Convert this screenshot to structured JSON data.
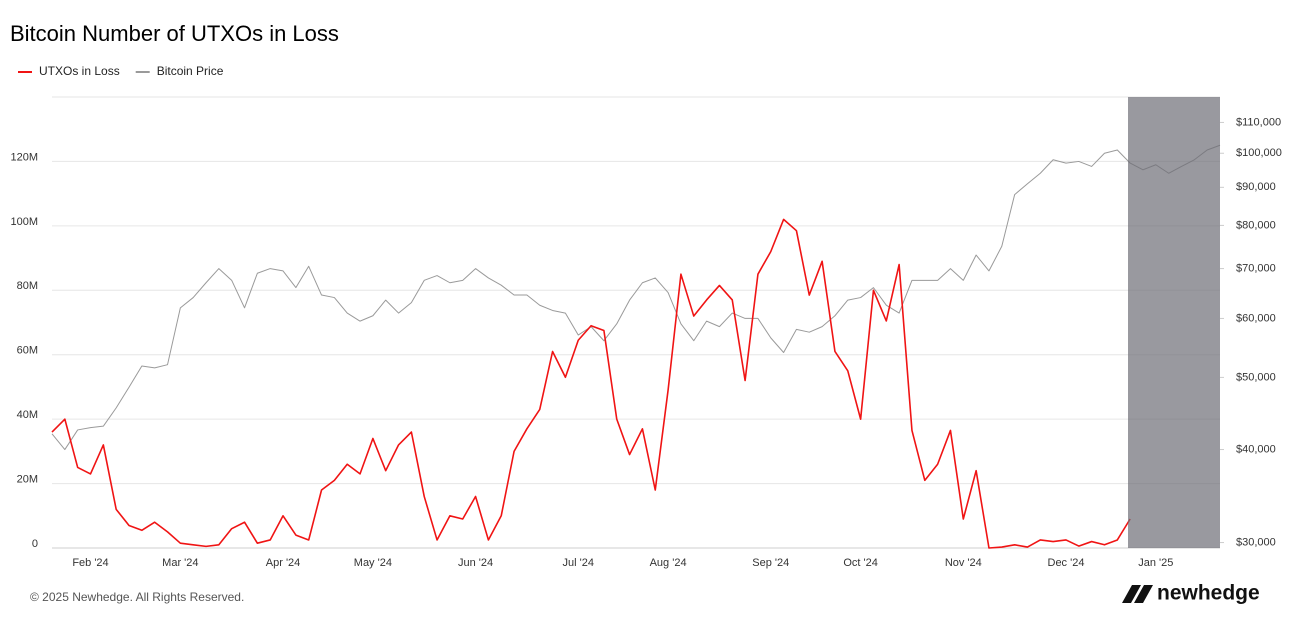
{
  "chart_data": {
    "type": "line",
    "title": "Bitcoin Number of UTXOs in Loss",
    "categories": [
      null,
      null,
      null,
      "Feb '24",
      null,
      null,
      null,
      null,
      null,
      null,
      "Mar '24",
      null,
      null,
      null,
      null,
      null,
      null,
      null,
      "Apr '24",
      null,
      null,
      null,
      null,
      null,
      null,
      "May '24",
      null,
      null,
      null,
      null,
      null,
      null,
      null,
      "Jun '24",
      null,
      null,
      null,
      null,
      null,
      null,
      null,
      "Jul '24",
      null,
      null,
      null,
      null,
      null,
      null,
      "Aug '24",
      null,
      null,
      null,
      null,
      null,
      null,
      null,
      "Sep '24",
      null,
      null,
      null,
      null,
      null,
      null,
      "Oct '24",
      null,
      null,
      null,
      null,
      null,
      null,
      null,
      "Nov '24",
      null,
      null,
      null,
      null,
      null,
      null,
      null,
      "Dec '24",
      null,
      null,
      null,
      null,
      null,
      null,
      "Jan '25",
      null,
      null,
      null,
      null,
      null
    ],
    "series": [
      {
        "name": "UTXOs in Loss",
        "color": "#f01414",
        "values": [
          36,
          40,
          25,
          23,
          32,
          12,
          7,
          5.5,
          8,
          5,
          1.5,
          1,
          0.5,
          1,
          6,
          8,
          1.5,
          2.5,
          10,
          4,
          2.5,
          18,
          21,
          26,
          23,
          34,
          24,
          32,
          36,
          16,
          2.5,
          10,
          9,
          16,
          2.5,
          10,
          30,
          37,
          43,
          61,
          53,
          64.5,
          69,
          67.5,
          40,
          29,
          37,
          18,
          49,
          85,
          72,
          77,
          81.5,
          77,
          52,
          85,
          92,
          102,
          98.5,
          78.5,
          89,
          61,
          55,
          40,
          80,
          70.5,
          88,
          36.5,
          21,
          26,
          36.5,
          9,
          24,
          0,
          0.3,
          1,
          0.3,
          2.5,
          2,
          2.5,
          0.6,
          2,
          1,
          2.5,
          9,
          null,
          null,
          null,
          null,
          null,
          null,
          null
        ]
      },
      {
        "name": "Bitcoin Price",
        "color": "#9a9a9a",
        "axis": "y2",
        "values": [
          42000,
          40000,
          42500,
          42800,
          43000,
          45500,
          48500,
          51800,
          51500,
          52000,
          62000,
          64000,
          67000,
          70000,
          67500,
          62000,
          69000,
          70000,
          69500,
          66000,
          70500,
          64500,
          64000,
          61000,
          59500,
          60500,
          63500,
          61000,
          63000,
          67500,
          68500,
          67000,
          67500,
          70000,
          68000,
          66500,
          64500,
          64500,
          62500,
          61500,
          61000,
          57000,
          58500,
          56000,
          59000,
          63500,
          67000,
          68000,
          65000,
          59000,
          56000,
          59500,
          58500,
          61000,
          60000,
          60000,
          56500,
          54000,
          58000,
          57500,
          58500,
          60500,
          63500,
          64000,
          66000,
          62500,
          61000,
          67500,
          67500,
          67500,
          70000,
          67500,
          73000,
          69500,
          75000,
          88000,
          91000,
          94000,
          98000,
          97000,
          97500,
          96000,
          100000,
          101000,
          97000,
          95000,
          96500,
          94000,
          96000,
          98000,
          101000,
          102500
        ]
      }
    ],
    "ylim": [
      0,
      140
    ],
    "yticks": [
      {
        "value": 0,
        "label": "0"
      },
      {
        "value": 20,
        "label": "20M"
      },
      {
        "value": 40,
        "label": "40M"
      },
      {
        "value": 60,
        "label": "60M"
      },
      {
        "value": 80,
        "label": "80M"
      },
      {
        "value": 100,
        "label": "100M"
      },
      {
        "value": 120,
        "label": "120M"
      }
    ],
    "y2lim": [
      29500,
      119000
    ],
    "y2scale": "log",
    "y2ticks": [
      {
        "value": 30000,
        "label": "$30,000"
      },
      {
        "value": 40000,
        "label": "$40,000"
      },
      {
        "value": 50000,
        "label": "$50,000"
      },
      {
        "value": 60000,
        "label": "$60,000"
      },
      {
        "value": 70000,
        "label": "$70,000"
      },
      {
        "value": 80000,
        "label": "$80,000"
      },
      {
        "value": 90000,
        "label": "$90,000"
      },
      {
        "value": 100000,
        "label": "$100,000"
      },
      {
        "value": 110000,
        "label": "$110,000"
      }
    ],
    "grid": true,
    "legend": "top-left"
  },
  "footer": {
    "copyright": "© 2025 Newhedge. All Rights Reserved.",
    "brand": "newhedge"
  }
}
